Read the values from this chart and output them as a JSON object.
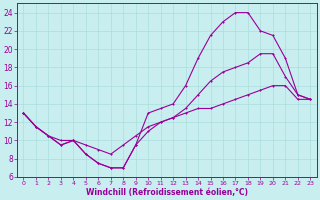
{
  "xlabel": "Windchill (Refroidissement éolien,°C)",
  "bg_color": "#c8eef0",
  "grid_color": "#aadddd",
  "line_color": "#990099",
  "xlim": [
    -0.5,
    23.5
  ],
  "ylim": [
    6,
    25
  ],
  "xticks": [
    0,
    1,
    2,
    3,
    4,
    5,
    6,
    7,
    8,
    9,
    10,
    11,
    12,
    13,
    14,
    15,
    16,
    17,
    18,
    19,
    20,
    21,
    22,
    23
  ],
  "yticks": [
    6,
    8,
    10,
    12,
    14,
    16,
    18,
    20,
    22,
    24
  ],
  "line1_x": [
    0,
    1,
    2,
    3,
    4,
    5,
    6,
    7,
    8,
    9,
    10,
    11,
    12,
    13,
    14,
    15,
    16,
    17,
    18,
    19,
    20,
    21,
    22,
    23
  ],
  "line1_y": [
    13,
    11.5,
    10.5,
    9.5,
    10,
    8.5,
    7.5,
    7,
    7,
    9.5,
    13,
    13.5,
    14,
    16,
    19,
    21.5,
    23,
    24,
    24,
    22,
    21.5,
    19,
    15,
    14.5
  ],
  "line2_x": [
    0,
    1,
    2,
    3,
    4,
    5,
    6,
    7,
    8,
    9,
    10,
    11,
    12,
    13,
    14,
    15,
    16,
    17,
    18,
    19,
    20,
    21,
    22,
    23
  ],
  "line2_y": [
    13,
    11.5,
    10.5,
    9.5,
    10,
    8.5,
    7.5,
    7,
    7,
    9.5,
    11,
    12,
    12.5,
    13.5,
    15,
    16.5,
    17.5,
    18,
    18.5,
    19.5,
    19.5,
    17,
    15,
    14.5
  ],
  "line3_x": [
    0,
    1,
    2,
    3,
    4,
    5,
    6,
    7,
    8,
    9,
    10,
    11,
    12,
    13,
    14,
    15,
    16,
    17,
    18,
    19,
    20,
    21,
    22,
    23
  ],
  "line3_y": [
    13,
    11.5,
    10.5,
    10,
    10,
    9.5,
    9,
    8.5,
    9.5,
    10.5,
    11.5,
    12,
    12.5,
    13,
    13.5,
    13.5,
    14,
    14.5,
    15,
    15.5,
    16,
    16,
    14.5,
    14.5
  ]
}
